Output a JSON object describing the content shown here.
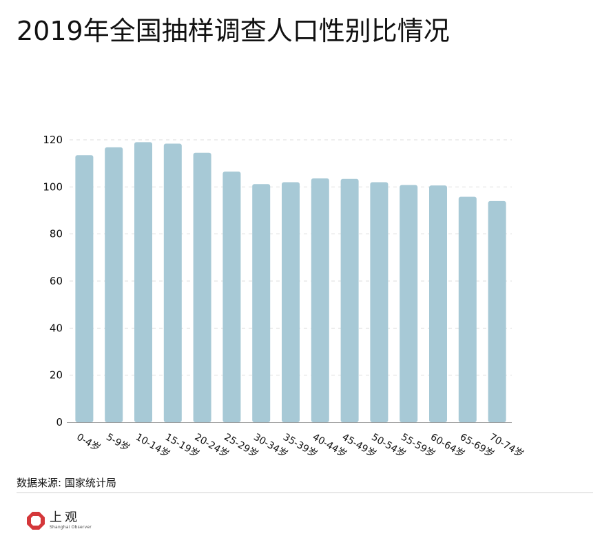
{
  "title": "2019年全国抽样调查人口性别比情况",
  "source": "数据来源: 国家统计局",
  "brand": {
    "name_cn": "上观",
    "name_en": "Shanghai Observer",
    "logo_icon": "shanghai-observer-logo-icon",
    "logo_color": "#d4373a"
  },
  "colors": {
    "bar": "#a7c9d6",
    "grid": "#dddddd",
    "axis": "#999999"
  },
  "chart_data": {
    "type": "bar",
    "title": "2019年全国抽样调查人口性别比情况",
    "categories": [
      "0-4岁",
      "5-9岁",
      "10-14岁",
      "15-19岁",
      "20-24岁",
      "25-29岁",
      "30-34岁",
      "35-39岁",
      "40-44岁",
      "45-49岁",
      "50-54岁",
      "55-59岁",
      "60-64岁",
      "65-69岁",
      "70-74岁"
    ],
    "values": [
      113.5,
      116.8,
      119.0,
      118.4,
      114.5,
      106.5,
      101.2,
      102.0,
      103.6,
      103.4,
      102.0,
      100.8,
      100.6,
      95.8,
      94.0
    ],
    "ylim": [
      0,
      120
    ],
    "yticks": [
      0,
      20,
      40,
      60,
      80,
      100,
      120
    ],
    "xlabel": "",
    "ylabel": "",
    "grid": true,
    "legend": "none"
  }
}
